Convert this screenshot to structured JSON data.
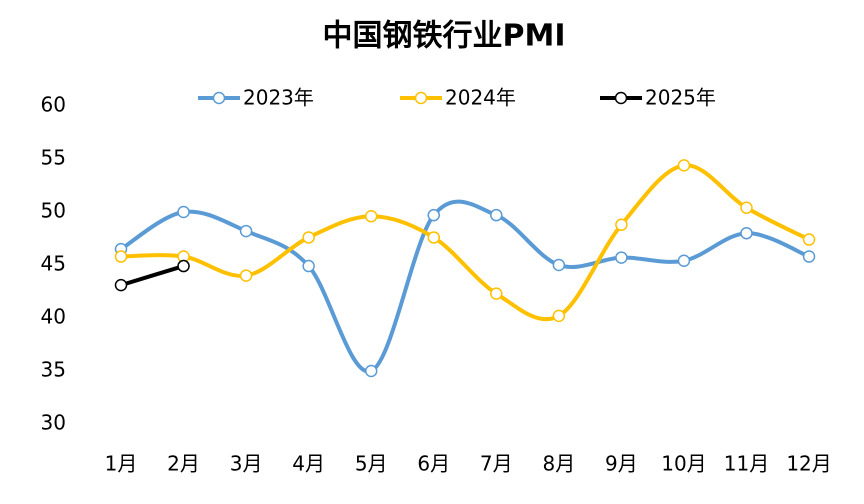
{
  "chart_data": {
    "type": "line",
    "title": "中国钢铁行业PMI",
    "categories": [
      "1月",
      "2月",
      "3月",
      "4月",
      "5月",
      "6月",
      "7月",
      "8月",
      "9月",
      "10月",
      "11月",
      "12月"
    ],
    "series": [
      {
        "name": "2023年",
        "color": "#5b9bd5",
        "values": [
          46.5,
          50.0,
          48.2,
          44.9,
          35.0,
          49.7,
          49.7,
          45.0,
          45.7,
          45.4,
          48.0,
          45.8
        ]
      },
      {
        "name": "2024年",
        "color": "#ffc000",
        "values": [
          45.8,
          45.8,
          44.0,
          47.6,
          49.6,
          47.6,
          42.3,
          40.2,
          48.8,
          54.4,
          50.4,
          47.4
        ]
      },
      {
        "name": "2025年",
        "color": "#000000",
        "values": [
          43.1,
          44.9,
          null,
          null,
          null,
          null,
          null,
          null,
          null,
          null,
          null,
          null
        ]
      }
    ],
    "ylim": [
      30,
      60
    ],
    "yticks": [
      30,
      35,
      40,
      45,
      50,
      55,
      60
    ],
    "smooth": true
  }
}
